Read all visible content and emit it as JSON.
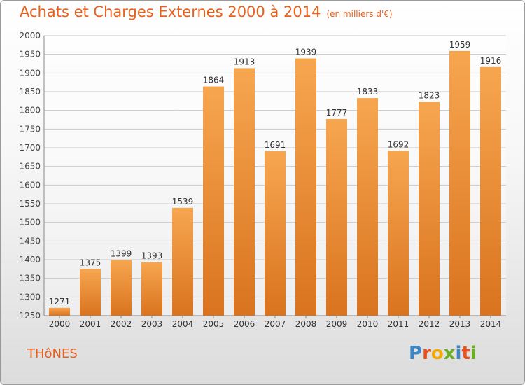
{
  "header": {
    "title": "Achats et Charges Externes 2000 à 2014",
    "subtitle": "(en milliers d'€)"
  },
  "footer": {
    "place": "THôNES",
    "brand": "Proxiti",
    "brand_letters": [
      {
        "ch": "P",
        "color": "#3a86c8"
      },
      {
        "ch": "r",
        "color": "#e94e1b"
      },
      {
        "ch": "o",
        "color": "#f2a900"
      },
      {
        "ch": "x",
        "color": "#6ab023"
      },
      {
        "ch": "i",
        "color": "#3a86c8"
      },
      {
        "ch": "t",
        "color": "#e94e1b"
      },
      {
        "ch": "i",
        "color": "#6ab023"
      }
    ]
  },
  "chart_data": {
    "type": "bar",
    "categories": [
      "2000",
      "2001",
      "2002",
      "2003",
      "2004",
      "2005",
      "2006",
      "2007",
      "2008",
      "2009",
      "2010",
      "2011",
      "2012",
      "2013",
      "2014"
    ],
    "values": [
      1271,
      1375,
      1399,
      1393,
      1539,
      1864,
      1913,
      1691,
      1939,
      1777,
      1833,
      1692,
      1823,
      1959,
      1916
    ],
    "ylim": [
      1250,
      2000
    ],
    "yticks": [
      1250,
      1300,
      1350,
      1400,
      1450,
      1500,
      1550,
      1600,
      1650,
      1700,
      1750,
      1800,
      1850,
      1900,
      1950,
      2000
    ],
    "grid": true,
    "bar_color_light": "#f7a650",
    "bar_color_dark": "#d9731f",
    "title": "Achats et Charges Externes 2000 à 2014",
    "xlabel": "",
    "ylabel": ""
  }
}
